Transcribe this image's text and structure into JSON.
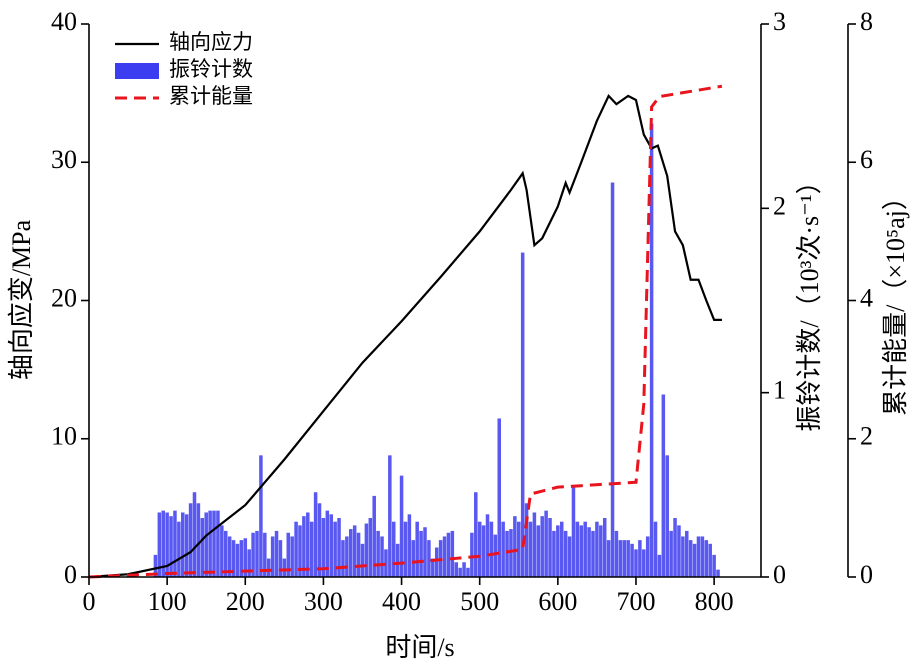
{
  "chart_data": {
    "type": "combo",
    "xlabel": "时间/s",
    "xlim": [
      0,
      860
    ],
    "xticks": [
      0,
      100,
      200,
      300,
      400,
      500,
      600,
      700,
      800
    ],
    "ylabel": "轴向应变/MPa",
    "ylim": [
      0,
      40
    ],
    "yticks": [
      0,
      10,
      20,
      30,
      40
    ],
    "y2label": "振铃计数/（10³次·s⁻¹）",
    "y2lim": [
      0,
      3
    ],
    "y2ticks": [
      0,
      1,
      2,
      3
    ],
    "y3label": "累计能量/（×10⁵aj）",
    "y3lim": [
      0,
      8
    ],
    "y3ticks": [
      0,
      2,
      4,
      6,
      8
    ],
    "legend": "upper left",
    "series": [
      {
        "name": "轴向应力",
        "color": "#000000",
        "type": "line",
        "axis": "y",
        "x": [
          0,
          50,
          100,
          130,
          150,
          200,
          250,
          300,
          350,
          400,
          450,
          500,
          540,
          555,
          560,
          570,
          580,
          600,
          610,
          615,
          630,
          650,
          665,
          675,
          690,
          700,
          710,
          720,
          728,
          740,
          750,
          760,
          770,
          780,
          790,
          800,
          810
        ],
        "values": [
          0,
          0.2,
          0.8,
          1.8,
          3,
          5.2,
          8.5,
          12,
          15.5,
          18.5,
          21.7,
          25,
          28,
          29.2,
          28,
          24,
          24.5,
          26.8,
          28.5,
          27.8,
          30,
          33,
          34.8,
          34.2,
          34.8,
          34.5,
          32,
          31,
          31.2,
          29,
          25,
          24,
          21.5,
          21.5,
          20,
          18.6,
          18.6
        ]
      },
      {
        "name": "振铃计数",
        "color": "#3c3cf0",
        "type": "bar",
        "axis": "y2",
        "x": [
          85,
          90,
          95,
          100,
          105,
          110,
          115,
          120,
          125,
          130,
          135,
          140,
          145,
          150,
          155,
          160,
          165,
          170,
          175,
          180,
          185,
          190,
          195,
          200,
          205,
          210,
          215,
          220,
          225,
          230,
          235,
          240,
          245,
          250,
          255,
          260,
          265,
          270,
          275,
          280,
          285,
          290,
          295,
          300,
          305,
          310,
          315,
          320,
          325,
          330,
          335,
          340,
          345,
          350,
          355,
          360,
          365,
          370,
          375,
          380,
          385,
          390,
          395,
          400,
          405,
          410,
          415,
          420,
          425,
          430,
          435,
          440,
          445,
          450,
          455,
          460,
          465,
          470,
          475,
          480,
          485,
          490,
          495,
          500,
          505,
          510,
          515,
          520,
          525,
          530,
          535,
          540,
          545,
          550,
          555,
          560,
          565,
          570,
          575,
          580,
          585,
          590,
          595,
          600,
          605,
          610,
          615,
          620,
          625,
          630,
          635,
          640,
          645,
          650,
          655,
          660,
          665,
          670,
          675,
          680,
          685,
          690,
          695,
          700,
          705,
          710,
          715,
          720,
          725,
          730,
          735,
          740,
          745,
          750,
          755,
          760,
          765,
          770,
          775,
          780,
          785,
          790,
          795,
          800,
          805
        ],
        "values": [
          0.12,
          0.35,
          0.36,
          0.35,
          0.33,
          0.36,
          0.3,
          0.35,
          0.34,
          0.4,
          0.46,
          0.4,
          0.32,
          0.35,
          0.36,
          0.36,
          0.36,
          0.28,
          0.25,
          0.22,
          0.2,
          0.18,
          0.2,
          0.21,
          0.15,
          0.24,
          0.25,
          0.66,
          0.24,
          0.1,
          0.22,
          0.25,
          0.2,
          0.1,
          0.24,
          0.22,
          0.3,
          0.28,
          0.33,
          0.35,
          0.3,
          0.46,
          0.4,
          0.32,
          0.36,
          0.34,
          0.3,
          0.32,
          0.2,
          0.22,
          0.26,
          0.28,
          0.24,
          0.18,
          0.29,
          0.32,
          0.44,
          0.25,
          0.22,
          0.15,
          0.66,
          0.3,
          0.18,
          0.55,
          0.3,
          0.34,
          0.2,
          0.3,
          0.25,
          0.27,
          0.2,
          0.1,
          0.16,
          0.2,
          0.22,
          0.24,
          0.25,
          0.08,
          0.05,
          0.08,
          0.05,
          0.24,
          0.46,
          0.3,
          0.28,
          0.34,
          0.3,
          0.23,
          0.86,
          0.3,
          0.25,
          0.26,
          0.33,
          0.3,
          1.76,
          0.4,
          0.3,
          0.35,
          0.28,
          0.33,
          0.36,
          0.32,
          0.25,
          0.28,
          0.3,
          0.25,
          0.22,
          0.5,
          0.3,
          0.28,
          0.3,
          0.27,
          0.25,
          0.3,
          0.28,
          0.32,
          0.2,
          2.14,
          0.25,
          0.2,
          0.2,
          0.2,
          0.18,
          0.15,
          0.2,
          0.15,
          0.22,
          2.46,
          0.3,
          0.12,
          0.99,
          0.66,
          0.25,
          0.32,
          0.28,
          0.22,
          0.25,
          0.2,
          0.18,
          0.22,
          0.22,
          0.2,
          0.18,
          0.12,
          0.04
        ]
      },
      {
        "name": "累计能量",
        "color": "#e8141e",
        "type": "line",
        "dashed": true,
        "axis": "y3",
        "x": [
          0,
          100,
          300,
          400,
          500,
          555,
          565,
          600,
          700,
          710,
          720,
          730,
          810
        ],
        "values": [
          0,
          0.05,
          0.12,
          0.2,
          0.3,
          0.4,
          1.2,
          1.3,
          1.37,
          2.5,
          6.8,
          6.95,
          7.1
        ]
      }
    ]
  }
}
